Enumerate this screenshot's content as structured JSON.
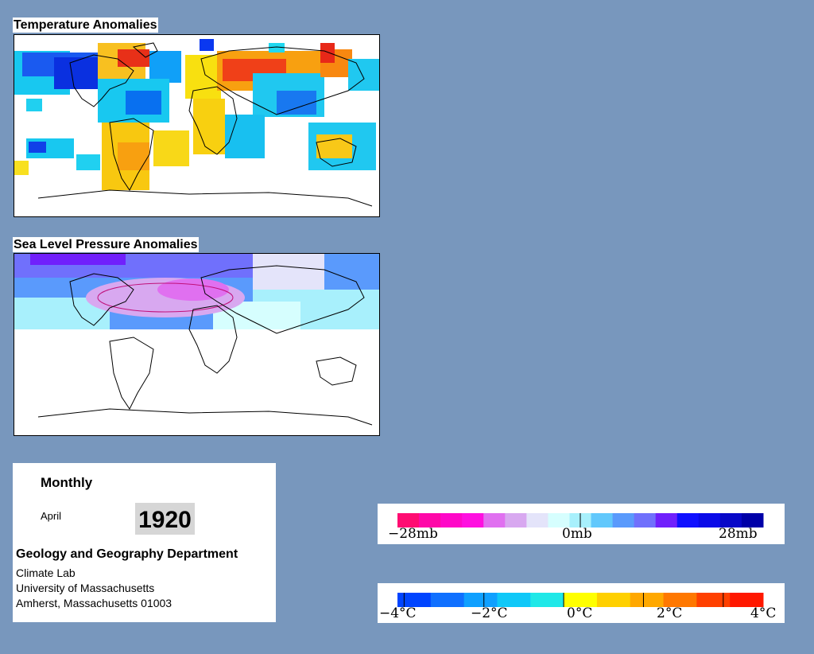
{
  "temperature_map": {
    "title": "Temperature Anomalies"
  },
  "pressure_map": {
    "title": "Sea Level Pressure Anomalies"
  },
  "info": {
    "period": "Monthly",
    "month": "April",
    "year": "1920",
    "department": "Geology and Geography Department",
    "lab": "Climate Lab",
    "university": "University of Massachusetts",
    "address": "Amherst, Massachusetts 01003"
  },
  "pressure_legend": {
    "colors": [
      "#ff0c72",
      "#ff08a8",
      "#ff08c8",
      "#ff10e0",
      "#e070f0",
      "#d8a8f0",
      "#e4e4fa",
      "#d6fefe",
      "#a8f0fc",
      "#62c8fc",
      "#5a9afc",
      "#7070fc",
      "#7020fc",
      "#1010ff",
      "#0a0ae8",
      "#0808c8",
      "#0000a8"
    ],
    "tick_labels": [
      "−28mb",
      "0mb",
      "28mb"
    ]
  },
  "temperature_legend": {
    "colors": [
      "#0044ff",
      "#1070ff",
      "#10a0ff",
      "#10c8f8",
      "#20e8e8",
      "#ffff00",
      "#ffd000",
      "#ffa800",
      "#ff7800",
      "#ff4000",
      "#ff1800"
    ],
    "tick_labels": [
      "−4°C",
      "−2°C",
      "0°C",
      "2°C",
      "4°C"
    ]
  }
}
